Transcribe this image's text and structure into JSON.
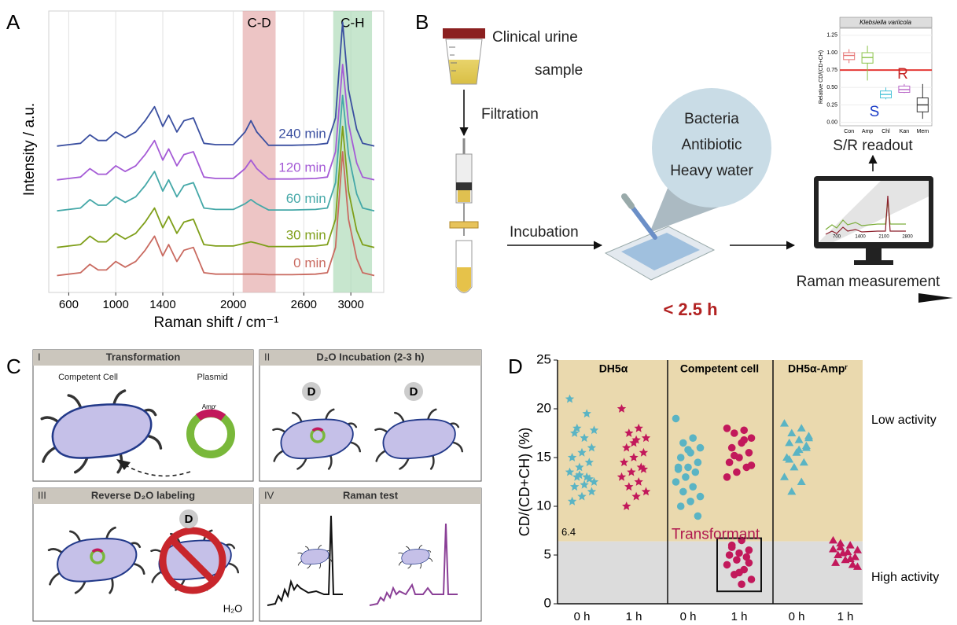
{
  "panel_labels": [
    "A",
    "B",
    "C",
    "D"
  ],
  "chart_data": [
    {
      "type": "line",
      "xlabel": "Raman shift / cm⁻¹",
      "ylabel": "Intensity / a.u.",
      "x": [
        500,
        600,
        700,
        780,
        850,
        920,
        1000,
        1080,
        1170,
        1250,
        1330,
        1400,
        1450,
        1520,
        1580,
        1660,
        1750,
        1850,
        2000,
        2100,
        2150,
        2200,
        2300,
        2500,
        2700,
        2800,
        2870,
        2930,
        2980,
        3050,
        3100,
        3200
      ],
      "series": [
        {
          "name": "0 min",
          "color": "#c96a60",
          "values": [
            6,
            6.5,
            7,
            10,
            8,
            8,
            11,
            9,
            11,
            15,
            20,
            13,
            17,
            11,
            15,
            16,
            7,
            6.5,
            6.5,
            6.5,
            6.5,
            6.5,
            6.3,
            6.3,
            6.5,
            7,
            16,
            50,
            26,
            12,
            7,
            6
          ]
        },
        {
          "name": "30 min",
          "color": "#7f9f1a",
          "values": [
            16,
            16.5,
            17,
            20,
            18,
            18,
            21,
            19,
            21,
            25,
            30,
            23,
            27,
            21,
            25,
            26,
            17,
            16.5,
            16.5,
            17.5,
            18,
            17.5,
            16.3,
            16.3,
            16.5,
            17,
            26,
            59,
            36,
            22,
            17,
            16
          ]
        },
        {
          "name": "60 min",
          "color": "#45a8a8",
          "values": [
            29,
            29.5,
            30,
            33,
            31,
            31,
            34,
            32,
            34,
            38,
            43,
            36,
            40,
            34,
            38,
            39,
            30,
            29.5,
            29.5,
            31.5,
            33,
            31.5,
            29.3,
            29.3,
            29.5,
            30,
            39,
            70,
            49,
            35,
            30,
            29
          ]
        },
        {
          "name": "120 min",
          "color": "#a55bd6",
          "values": [
            40,
            40.5,
            41,
            44,
            42,
            42,
            45,
            43,
            45,
            49,
            54,
            47,
            51,
            45,
            49,
            50,
            41,
            40.5,
            40.5,
            44,
            47,
            44,
            40.3,
            40.3,
            40.5,
            41,
            50,
            81,
            60,
            46,
            41,
            40
          ]
        },
        {
          "name": "240 min",
          "color": "#3a4fa0",
          "values": [
            52,
            52.5,
            53,
            56,
            54,
            54,
            57,
            55,
            57,
            61,
            66,
            59,
            63,
            57,
            61,
            62,
            53,
            52.5,
            52.5,
            57,
            61,
            57,
            52.3,
            52.3,
            52.5,
            53,
            62,
            96,
            72,
            58,
            53,
            52
          ]
        }
      ],
      "xlim": [
        430,
        3280
      ],
      "ylim": [
        0,
        100
      ],
      "xticks": [
        600,
        1000,
        1400,
        2000,
        2600,
        3000
      ],
      "grid": true,
      "bands": [
        {
          "label": "C-D",
          "range": [
            2080,
            2360
          ],
          "color": "#e3a6a6"
        },
        {
          "label": "C-H",
          "range": [
            2850,
            3180
          ],
          "color": "#a9d9b4"
        }
      ]
    },
    {
      "type": "box",
      "title": "Klebsiella variicola",
      "ylabel": "Relative CD/(CD+CH)",
      "caption": "S/R readout",
      "categories": [
        "Con",
        "Amp",
        "Chl",
        "Kan",
        "Mem"
      ],
      "colors": [
        "#e57373",
        "#8bc34a",
        "#4dc4d8",
        "#ba68c8",
        "#333333"
      ],
      "whisker_low": [
        0.85,
        0.6,
        0.33,
        0.42,
        0.05
      ],
      "q1": [
        0.9,
        0.85,
        0.35,
        0.43,
        0.15
      ],
      "median": [
        0.96,
        0.93,
        0.4,
        0.47,
        0.25
      ],
      "q3": [
        1.0,
        1.0,
        0.45,
        0.52,
        0.35
      ],
      "whisker_high": [
        1.05,
        1.1,
        0.5,
        0.55,
        0.55
      ],
      "ylim": [
        -0.05,
        1.35
      ],
      "yticks": [
        {
          "value": 0,
          "label": "0.00"
        },
        {
          "value": 0.25,
          "label": "0.25"
        },
        {
          "value": 0.5,
          "label": "0.50"
        },
        {
          "value": 0.75,
          "label": "0.75"
        },
        {
          "value": 1,
          "label": "1.00"
        },
        {
          "value": 1.25,
          "label": "1.25"
        }
      ],
      "threshold": 0.75,
      "threshold_color": "#e53935",
      "annotations": [
        {
          "text": "R",
          "color": "#c62828"
        },
        {
          "text": "S",
          "color": "#1e3fc8"
        }
      ]
    },
    {
      "type": "strip",
      "ylabel": "CD/(CD+CH) (%)",
      "groups": [
        "DH5α",
        "Competent cell",
        "DH5α-Ampʳ"
      ],
      "markers": [
        "star",
        "circle",
        "triangle"
      ],
      "categories": [
        "0 h",
        "1 h",
        "0 h",
        "1 h",
        "0 h",
        "1 h"
      ],
      "colors": [
        "#5ab4c4",
        "#c2185b",
        "#5ab4c4",
        "#c2185b",
        "#5ab4c4",
        "#c2185b"
      ],
      "values": [
        [
          21,
          19.5,
          18,
          17.8,
          17,
          17.5,
          16,
          15.5,
          15,
          14.5,
          14,
          13.5,
          13,
          13,
          12.5,
          12.2,
          12,
          11.5,
          11,
          10.5,
          12.8,
          13.2
        ],
        [
          20,
          18,
          17.5,
          17,
          16.8,
          16,
          15.5,
          15,
          14.5,
          14,
          13.5,
          13,
          12.5,
          12,
          11.5,
          11,
          10,
          13.8,
          16.5
        ],
        [
          19,
          17,
          16.5,
          16,
          15.5,
          15,
          14.5,
          14,
          14,
          13.5,
          13,
          12.5,
          12,
          11.5,
          11,
          10.5,
          10,
          9,
          15.8,
          13.8
        ],
        [
          18,
          17.8,
          17.5,
          17,
          16.5,
          16,
          15.5,
          15,
          14.5,
          14,
          13.5,
          13,
          16.8,
          15.2,
          14.2,
          6.5,
          6,
          5.5,
          5.2,
          5,
          4.8,
          4.5,
          4,
          3.5,
          3,
          2.5,
          2,
          5.8,
          4.2,
          3.2
        ],
        [
          18.5,
          18,
          17.5,
          17,
          16.8,
          16.5,
          16,
          15.5,
          15,
          14.5,
          14,
          13,
          12.5,
          11.5,
          17.2,
          15.8,
          14.8,
          16.2
        ],
        [
          6.5,
          6,
          5.8,
          5.5,
          5.3,
          5,
          4.8,
          4.5,
          4.2,
          4,
          5.2,
          5.6,
          4.6,
          6.2,
          3.8
        ]
      ],
      "ylim": [
        0,
        25
      ],
      "yticks": [
        0,
        5,
        10,
        15,
        20,
        25
      ],
      "threshold": {
        "value": 6.4,
        "label": "6.4"
      },
      "regions": [
        {
          "label": "Low activity",
          "color": "#ead9ae"
        },
        {
          "label": "High activity",
          "color": "#dcdcdc"
        }
      ],
      "annotation": "Transformant",
      "annotation_color": "#b0174e"
    }
  ],
  "workflow": {
    "sample": [
      "Clinical urine",
      "sample"
    ],
    "filtration": "Filtration",
    "incubation": "Incubation",
    "bubble": [
      "Bacteria",
      "Antibiotic",
      "Heavy water"
    ],
    "measurement": "Raman measurement",
    "monitor_ticks": [
      "700",
      "1400",
      "2100",
      "2800"
    ],
    "duration": "< 2.5 h"
  },
  "schematic": {
    "steps": [
      {
        "numeral": "I",
        "title": "Transformation"
      },
      {
        "numeral": "II",
        "title": "D₂O Incubation (2-3 h)"
      },
      {
        "numeral": "III",
        "title": "Reverse D₂O labeling"
      },
      {
        "numeral": "IV",
        "title": "Raman test"
      }
    ],
    "competent_cell": "Competent Cell",
    "plasmid": "Plasmid",
    "marker": "Ampʳ",
    "deuterium": "D",
    "water": "H₂O"
  }
}
